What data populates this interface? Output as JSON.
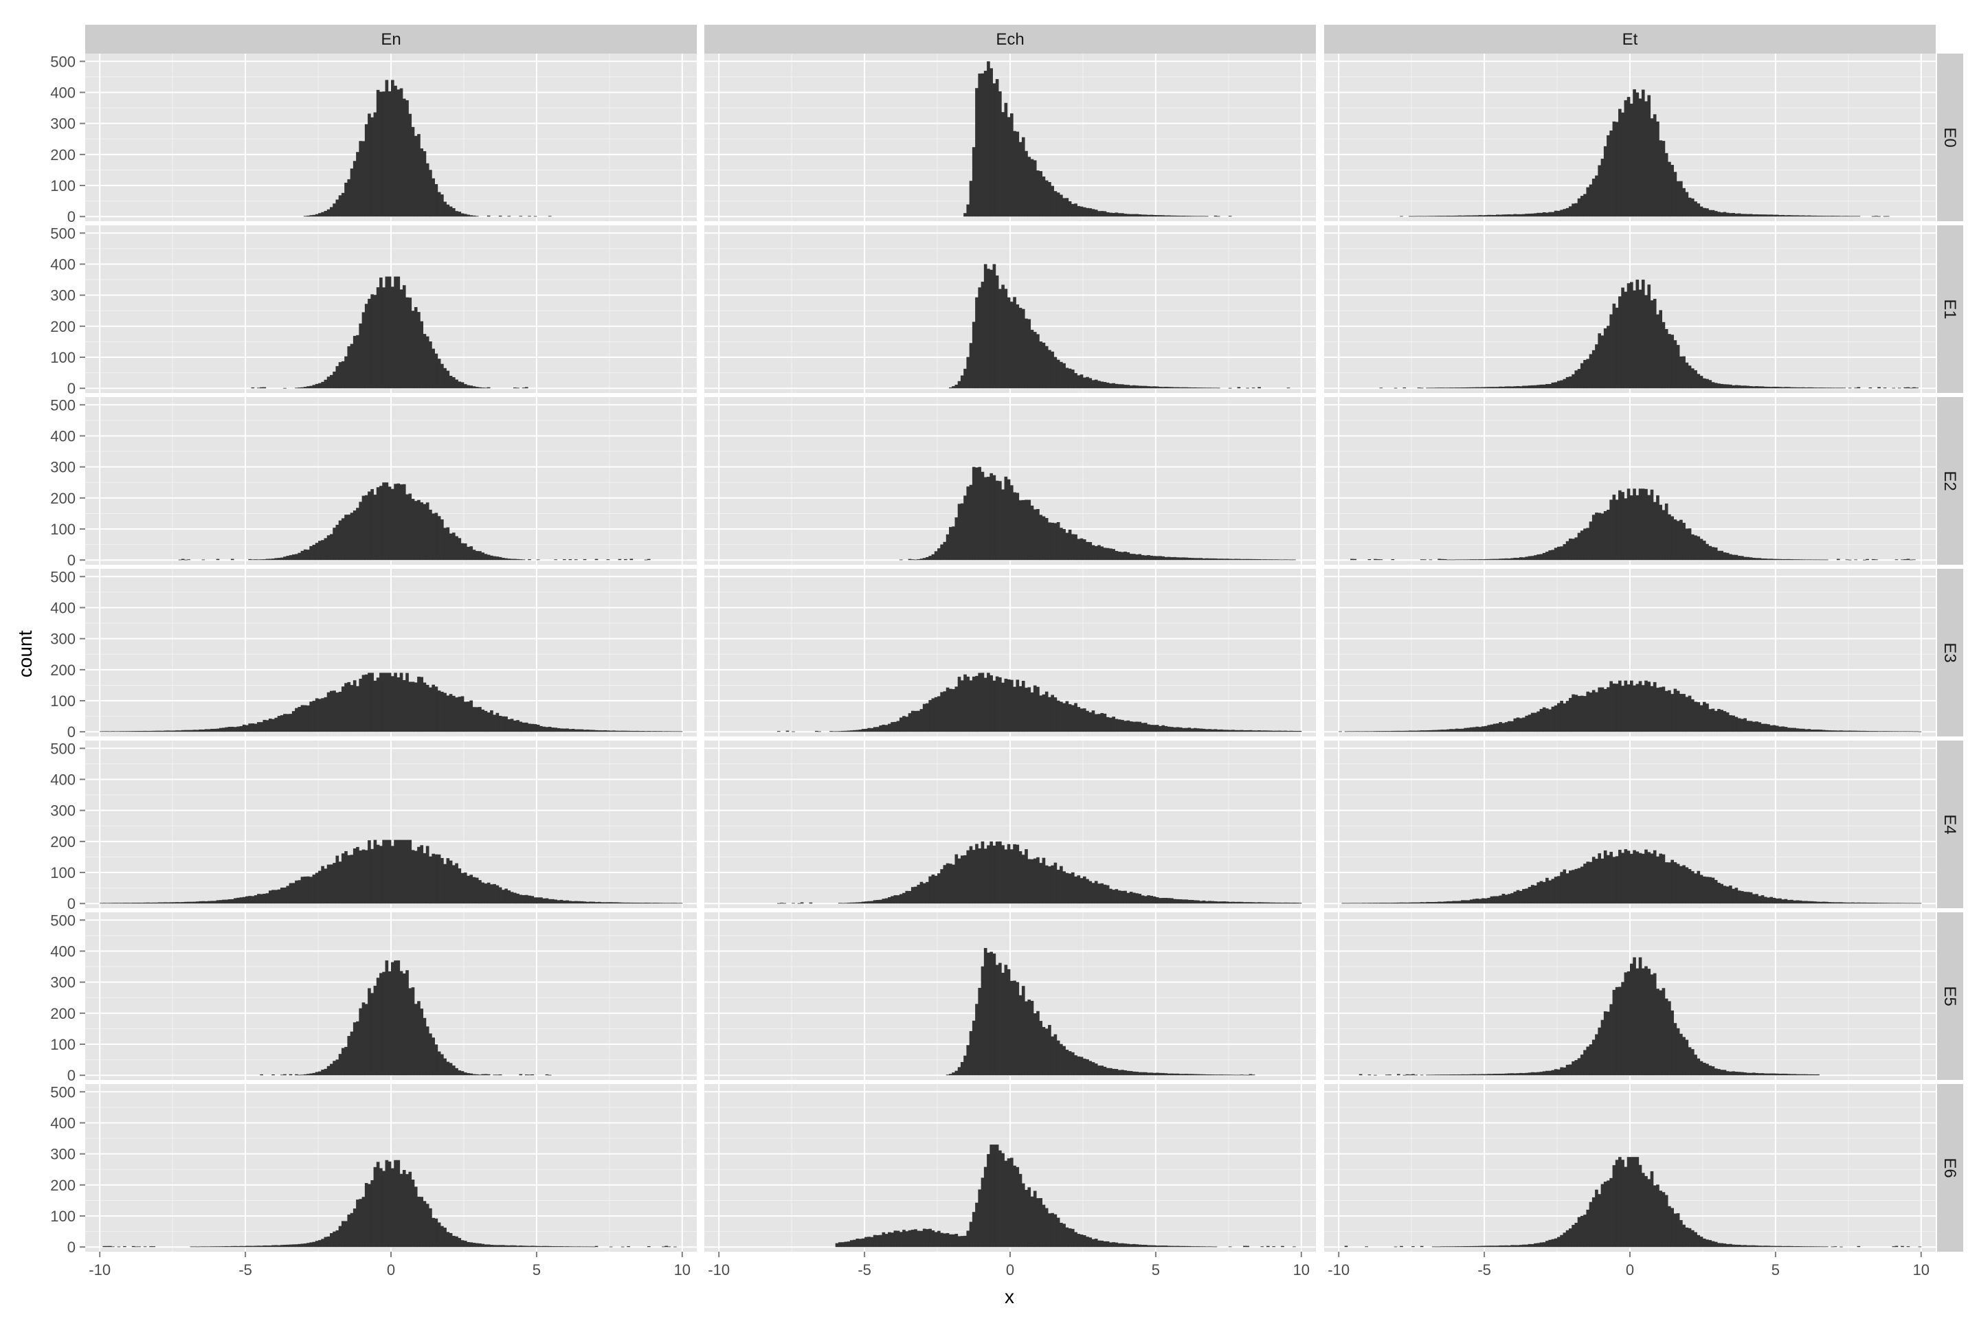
{
  "chart_data": {
    "type": "bar",
    "subtype": "faceted-histogram",
    "title": "",
    "xlabel": "x",
    "ylabel": "count",
    "xlim": [
      -10.5,
      10.5
    ],
    "ylim": [
      -15,
      525
    ],
    "x_ticks": [
      "-10",
      "-5",
      "0",
      "5",
      "10"
    ],
    "x_tick_values": [
      -10,
      -5,
      0,
      5,
      10
    ],
    "y_ticks": [
      "0",
      "100",
      "200",
      "300",
      "400",
      "500"
    ],
    "y_tick_values": [
      0,
      100,
      200,
      300,
      400,
      500
    ],
    "grid": true,
    "legend": "none",
    "facet_columns": [
      "En",
      "Ech",
      "Et"
    ],
    "facet_rows": [
      "E0",
      "E1",
      "E2",
      "E3",
      "E4",
      "E5",
      "E6"
    ],
    "bin_width": 0.1,
    "colors": {
      "bar": "#333333",
      "panel_bg": "#e5e5e5",
      "grid": "#ffffff",
      "strip_bg": "#cccccc",
      "strip_text": "#1a1a1a",
      "tick_text": "#4d4d4d"
    },
    "panels": [
      {
        "row": "E0",
        "col": "En",
        "peak_x": 0.0,
        "peak_count": 440,
        "shape": "normal",
        "sd": 0.9,
        "range": [
          -3.5,
          5.5
        ]
      },
      {
        "row": "E0",
        "col": "Ech",
        "peak_x": -1.0,
        "peak_count": 500,
        "shape": "right-skewed",
        "sd_left": 0.2,
        "sd_right": 1.3,
        "range": [
          -1.6,
          7.6
        ]
      },
      {
        "row": "E0",
        "col": "Et",
        "peak_x": 0.2,
        "peak_count": 410,
        "shape": "peaked-long-tails",
        "sd": 0.9,
        "range": [
          -8.0,
          9.0
        ]
      },
      {
        "row": "E1",
        "col": "En",
        "peak_x": 0.0,
        "peak_count": 360,
        "shape": "normal",
        "sd": 1.0,
        "range": [
          -5.0,
          5.5
        ]
      },
      {
        "row": "E1",
        "col": "Ech",
        "peak_x": -0.8,
        "peak_count": 400,
        "shape": "right-skewed",
        "sd_left": 0.4,
        "sd_right": 1.4,
        "range": [
          -2.1,
          9.6
        ]
      },
      {
        "row": "E1",
        "col": "Et",
        "peak_x": 0.2,
        "peak_count": 350,
        "shape": "peaked-long-tails",
        "sd": 1.0,
        "range": [
          -9.0,
          10.0
        ]
      },
      {
        "row": "E2",
        "col": "En",
        "peak_x": 0.0,
        "peak_count": 250,
        "shape": "normal",
        "sd": 1.45,
        "range": [
          -7.5,
          9.0
        ]
      },
      {
        "row": "E2",
        "col": "Ech",
        "peak_x": -1.0,
        "peak_count": 300,
        "shape": "right-skewed",
        "sd_left": 0.7,
        "sd_right": 2.0,
        "range": [
          -3.8,
          9.8
        ]
      },
      {
        "row": "E2",
        "col": "Et",
        "peak_x": 0.2,
        "peak_count": 230,
        "shape": "peaked-long-tails",
        "sd": 1.4,
        "range": [
          -9.8,
          9.8
        ]
      },
      {
        "row": "E3",
        "col": "En",
        "peak_x": 0.0,
        "peak_count": 190,
        "shape": "wide",
        "sd": 2.3,
        "range": [
          -10.0,
          10.0
        ]
      },
      {
        "row": "E3",
        "col": "Ech",
        "peak_x": -0.8,
        "peak_count": 190,
        "shape": "right-skewed",
        "sd_left": 1.7,
        "sd_right": 2.6,
        "range": [
          -8.0,
          10.0
        ]
      },
      {
        "row": "E3",
        "col": "Et",
        "peak_x": 0.0,
        "peak_count": 165,
        "shape": "wide",
        "sd": 2.3,
        "range": [
          -10.0,
          10.0
        ]
      },
      {
        "row": "E4",
        "col": "En",
        "peak_x": 0.0,
        "peak_count": 205,
        "shape": "wide",
        "sd": 2.2,
        "range": [
          -10.0,
          10.0
        ]
      },
      {
        "row": "E4",
        "col": "Ech",
        "peak_x": -0.5,
        "peak_count": 200,
        "shape": "right-skewed",
        "sd_left": 1.7,
        "sd_right": 2.4,
        "range": [
          -8.0,
          10.0
        ]
      },
      {
        "row": "E4",
        "col": "Et",
        "peak_x": 0.0,
        "peak_count": 175,
        "shape": "wide",
        "sd": 2.2,
        "range": [
          -10.0,
          10.0
        ]
      },
      {
        "row": "E5",
        "col": "En",
        "peak_x": 0.0,
        "peak_count": 370,
        "shape": "normal",
        "sd": 0.95,
        "range": [
          -4.5,
          5.5
        ]
      },
      {
        "row": "E5",
        "col": "Ech",
        "peak_x": -0.7,
        "peak_count": 410,
        "shape": "right-skewed",
        "sd_left": 0.45,
        "sd_right": 1.5,
        "range": [
          -2.3,
          8.6
        ]
      },
      {
        "row": "E5",
        "col": "Et",
        "peak_x": 0.3,
        "peak_count": 380,
        "shape": "peaked-long-tails",
        "sd": 1.0,
        "range": [
          -9.5,
          6.5
        ]
      },
      {
        "row": "E6",
        "col": "En",
        "peak_x": 0.0,
        "peak_count": 280,
        "shape": "peaked-long-tails",
        "sd": 1.0,
        "range": [
          -10.0,
          10.0
        ]
      },
      {
        "row": "E6",
        "col": "Ech",
        "peak_x": -0.6,
        "peak_count": 330,
        "shape": "right-skewed-left-shoulder",
        "sd_left": 0.45,
        "sd_right": 1.4,
        "range": [
          -6.0,
          10.0
        ]
      },
      {
        "row": "E6",
        "col": "Et",
        "peak_x": 0.0,
        "peak_count": 290,
        "shape": "peaked-long-tails",
        "sd": 1.1,
        "range": [
          -10.0,
          10.0
        ]
      }
    ]
  }
}
